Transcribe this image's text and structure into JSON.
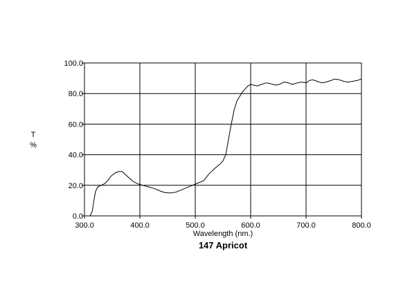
{
  "chart_data": {
    "type": "line",
    "title": "147 Apricot",
    "xlabel": "Wavelength (nm.)",
    "ylabel_line1": "T",
    "ylabel_line2": "%",
    "xlim": [
      300,
      800
    ],
    "ylim": [
      0,
      100
    ],
    "x_ticks": [
      300,
      400,
      500,
      600,
      700,
      800
    ],
    "x_tick_labels": [
      "300.0",
      "400.0",
      "500.0",
      "600.0",
      "700.0",
      "800.0"
    ],
    "y_ticks": [
      0,
      20,
      40,
      60,
      80,
      100
    ],
    "y_tick_labels": [
      "0.0",
      "20.0",
      "40.0",
      "60.0",
      "80.0",
      "100.0"
    ],
    "grid": true,
    "series": [
      {
        "color": "#000000",
        "points": [
          [
            310,
            0
          ],
          [
            314,
            3
          ],
          [
            317,
            10
          ],
          [
            320,
            16
          ],
          [
            324,
            19
          ],
          [
            330,
            20
          ],
          [
            336,
            21
          ],
          [
            342,
            23
          ],
          [
            348,
            26
          ],
          [
            355,
            28
          ],
          [
            362,
            29
          ],
          [
            368,
            29
          ],
          [
            374,
            27
          ],
          [
            380,
            25
          ],
          [
            388,
            22.5
          ],
          [
            396,
            21
          ],
          [
            405,
            20
          ],
          [
            415,
            19
          ],
          [
            425,
            18
          ],
          [
            435,
            16.5
          ],
          [
            445,
            15.2
          ],
          [
            455,
            15
          ],
          [
            465,
            15.5
          ],
          [
            475,
            17
          ],
          [
            485,
            18.5
          ],
          [
            495,
            20
          ],
          [
            505,
            21.5
          ],
          [
            515,
            23
          ],
          [
            525,
            27.5
          ],
          [
            535,
            31
          ],
          [
            545,
            34
          ],
          [
            550,
            36
          ],
          [
            555,
            40
          ],
          [
            560,
            50
          ],
          [
            565,
            60
          ],
          [
            570,
            69
          ],
          [
            575,
            75
          ],
          [
            580,
            78
          ],
          [
            585,
            81
          ],
          [
            590,
            83
          ],
          [
            595,
            85
          ],
          [
            600,
            86
          ],
          [
            605,
            85.5
          ],
          [
            612,
            85
          ],
          [
            620,
            86
          ],
          [
            628,
            87
          ],
          [
            635,
            86.5
          ],
          [
            645,
            85.5
          ],
          [
            652,
            86
          ],
          [
            660,
            87.5
          ],
          [
            668,
            87
          ],
          [
            675,
            86
          ],
          [
            685,
            87
          ],
          [
            692,
            87.5
          ],
          [
            700,
            87
          ],
          [
            706,
            88.5
          ],
          [
            712,
            89
          ],
          [
            720,
            88
          ],
          [
            728,
            87
          ],
          [
            736,
            87.5
          ],
          [
            745,
            88.5
          ],
          [
            752,
            89.5
          ],
          [
            760,
            89
          ],
          [
            768,
            88
          ],
          [
            776,
            87.5
          ],
          [
            784,
            88
          ],
          [
            792,
            88.5
          ],
          [
            800,
            89.5
          ]
        ]
      }
    ]
  }
}
